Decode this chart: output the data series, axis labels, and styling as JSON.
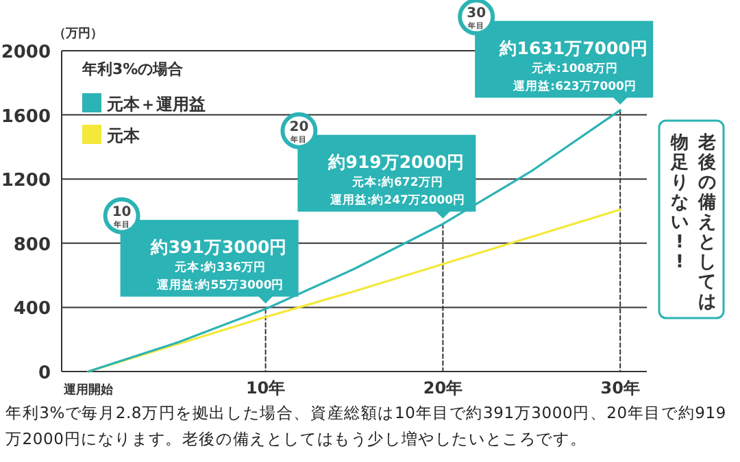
{
  "chart_data": {
    "type": "line",
    "ylabel": "（万円）",
    "legend_title": "年利3%の場合",
    "legend": "top left",
    "grid": "y",
    "marker": "none",
    "line_style": "solid",
    "x": [
      0,
      5,
      10,
      15,
      20,
      25,
      30
    ],
    "xlim": [
      -1.5,
      31.5
    ],
    "ylim": [
      0,
      2000
    ],
    "xticks": [
      {
        "value": 0,
        "label": "運用開始"
      },
      {
        "value": 10,
        "label": "10年"
      },
      {
        "value": 20,
        "label": "20年"
      },
      {
        "value": 30,
        "label": "30年"
      }
    ],
    "yticks": [
      0,
      400,
      800,
      1200,
      1600,
      2000
    ],
    "series": [
      {
        "name": "元本＋運用益",
        "color": "#2bb3b5",
        "values": [
          0,
          180,
          390,
          640,
          920,
          1250,
          1630
        ]
      },
      {
        "name": "元本",
        "color": "#f4e838",
        "values": [
          0,
          170,
          340,
          500,
          670,
          840,
          1010
        ]
      },
      {
        "color": "#333333",
        "line_style": "dashed",
        "x": [
          10,
          10
        ],
        "values": [
          390,
          0
        ]
      },
      {
        "color": "#333333",
        "line_style": "dashed",
        "x": [
          20,
          20
        ],
        "values": [
          920,
          0
        ]
      },
      {
        "color": "#333333",
        "line_style": "dashed",
        "x": [
          30,
          30
        ],
        "values": [
          1630,
          0
        ]
      }
    ],
    "annotations": [
      "10年目",
      "約391万3000円",
      "元本:約336万円",
      "運用益:約55万3000円",
      "20年目",
      "約919万2000円",
      "元本:約672万円",
      "運用益:約247万2000円",
      "30年目",
      "約1631万7000円",
      "元本:1008万円",
      "運用益:623万7000円",
      "老後の備えとしては",
      "物足りない!!",
      "年利3%で毎月2.8万円を拠出した場合、資産総額は10年目で約391万3000円、20年目で約919万2000円になります。老後の備えとしてはもう少し増やしたいところです。"
    ]
  }
}
